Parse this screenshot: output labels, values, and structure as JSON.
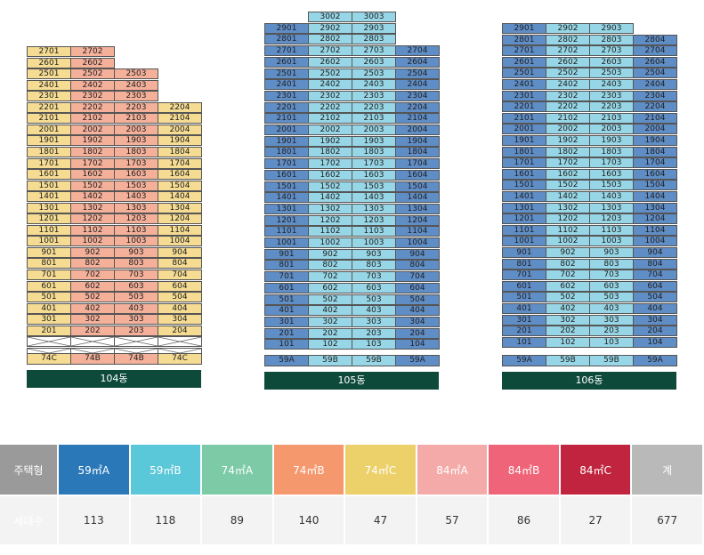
{
  "buildings": [
    {
      "name": "104동",
      "cols": [
        {
          "max": 27,
          "min": 1,
          "color": "#f5dc92"
        },
        {
          "max": 27,
          "min": 1,
          "color": "#f5b09a"
        },
        {
          "max": 25,
          "min": 1,
          "color": "#f5b09a"
        },
        {
          "max": 22,
          "min": 1,
          "color": "#f5dc92"
        }
      ],
      "bottom_floor": 2,
      "skip_rows": 2,
      "types": [
        "74C",
        "74B",
        "74B",
        "74C"
      ]
    },
    {
      "name": "105동",
      "cols": [
        {
          "max": 29,
          "min": 1,
          "color": "#5f8dc6"
        },
        {
          "max": 30,
          "min": 1,
          "color": "#96d6e6"
        },
        {
          "max": 30,
          "min": 1,
          "color": "#96d6e6"
        },
        {
          "max": 27,
          "min": 1,
          "color": "#5f8dc6"
        }
      ],
      "bottom_floor": 1,
      "skip_rows": 0,
      "types": [
        "59A",
        "59B",
        "59B",
        "59A"
      ]
    },
    {
      "name": "106동",
      "cols": [
        {
          "max": 29,
          "min": 1,
          "color": "#5f8dc6"
        },
        {
          "max": 29,
          "min": 1,
          "color": "#96d6e6"
        },
        {
          "max": 29,
          "min": 1,
          "color": "#96d6e6"
        },
        {
          "max": 28,
          "min": 1,
          "color": "#5f8dc6"
        }
      ],
      "bottom_floor": 1,
      "skip_rows": 0,
      "types": [
        "59A",
        "59B",
        "59B",
        "59A"
      ]
    }
  ],
  "type_colors": {
    "74C": "#f5dc92",
    "74B": "#f5b09a",
    "59A": "#5f8dc6",
    "59B": "#96d6e6"
  },
  "legend": {
    "row1_label": "주택형",
    "row2_label": "세대수",
    "items": [
      {
        "name": "59㎡A",
        "count": "113",
        "color": "#2a78b8"
      },
      {
        "name": "59㎡B",
        "count": "118",
        "color": "#5ac8d9"
      },
      {
        "name": "74㎡A",
        "count": "89",
        "color": "#7ccaa6"
      },
      {
        "name": "74㎡B",
        "count": "140",
        "color": "#f5986e"
      },
      {
        "name": "74㎡C",
        "count": "47",
        "color": "#ecd06a"
      },
      {
        "name": "84㎡A",
        "count": "57",
        "color": "#f5aaaa"
      },
      {
        "name": "84㎡B",
        "count": "86",
        "color": "#ef6478"
      },
      {
        "name": "84㎡C",
        "count": "27",
        "color": "#c1243e"
      },
      {
        "name": "계",
        "count": "677",
        "color": "#b9b9b9"
      }
    ]
  }
}
